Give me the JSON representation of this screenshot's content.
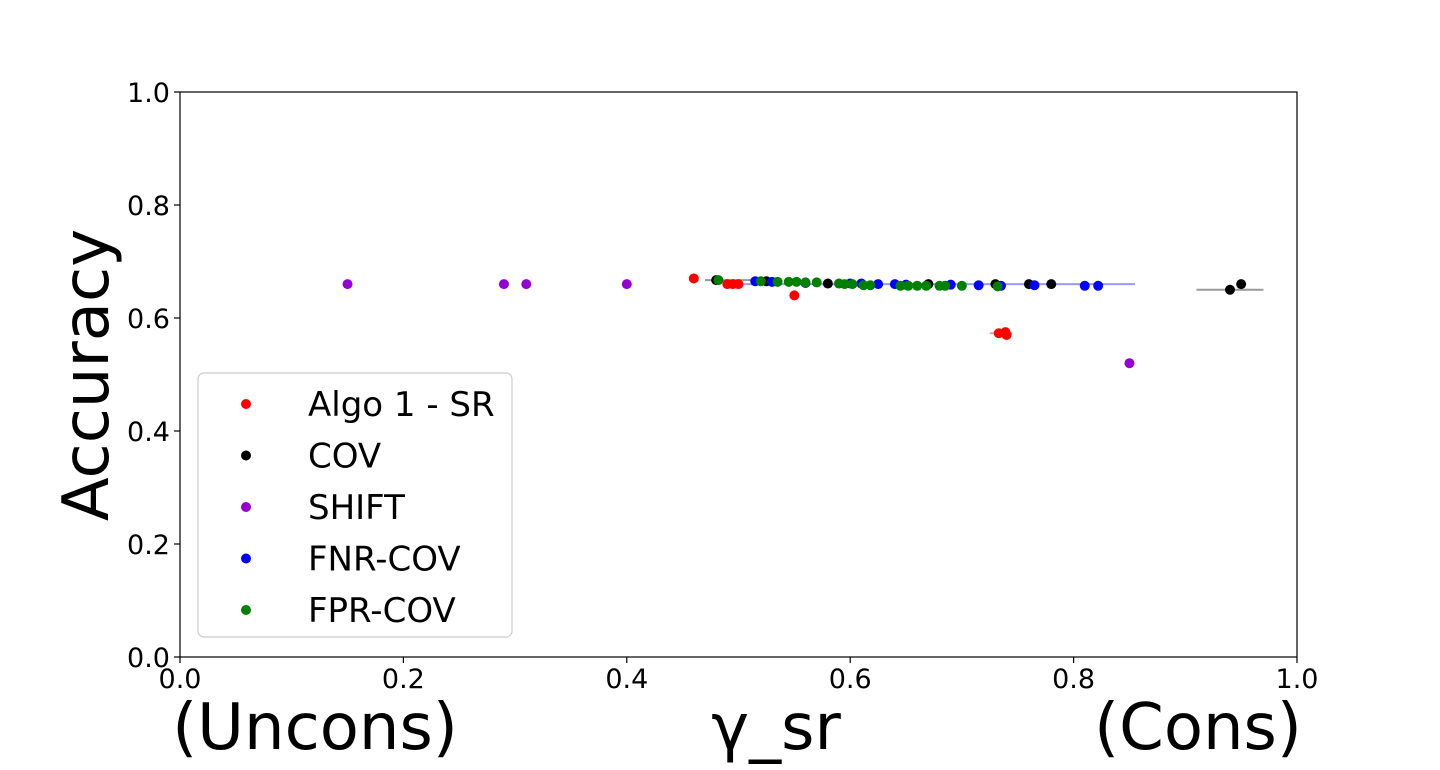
{
  "chart_data": {
    "type": "scatter",
    "title": "",
    "xlabel": {
      "left": "(Uncons)",
      "center": "γ_sr",
      "right": "(Cons)"
    },
    "ylabel": "Accuracy",
    "xlim": [
      0.0,
      1.0
    ],
    "ylim": [
      0.0,
      1.0
    ],
    "x_ticks": [
      "0.0",
      "0.2",
      "0.4",
      "0.6",
      "0.8",
      "1.0"
    ],
    "y_ticks": [
      "0.0",
      "0.2",
      "0.4",
      "0.6",
      "0.8",
      "1.0"
    ],
    "grid": false,
    "legend_position": "lower-left",
    "series": [
      {
        "name": "Algo 1 - SR",
        "color": "#ff0000",
        "points": [
          {
            "x": 0.46,
            "y": 0.67
          },
          {
            "x": 0.49,
            "y": 0.66
          },
          {
            "x": 0.495,
            "y": 0.66
          },
          {
            "x": 0.5,
            "y": 0.66
          },
          {
            "x": 0.55,
            "y": 0.64
          },
          {
            "x": 0.733,
            "y": 0.573
          },
          {
            "x": 0.739,
            "y": 0.575
          },
          {
            "x": 0.74,
            "y": 0.57
          }
        ],
        "errorbars": [
          {
            "x_lo": 0.725,
            "x_hi": 0.745,
            "y": 0.573
          }
        ]
      },
      {
        "name": "COV",
        "color": "#000000",
        "points": [
          {
            "x": 0.48,
            "y": 0.667
          },
          {
            "x": 0.525,
            "y": 0.665
          },
          {
            "x": 0.58,
            "y": 0.661
          },
          {
            "x": 0.67,
            "y": 0.66
          },
          {
            "x": 0.73,
            "y": 0.66
          },
          {
            "x": 0.76,
            "y": 0.66
          },
          {
            "x": 0.78,
            "y": 0.66
          },
          {
            "x": 0.94,
            "y": 0.65
          },
          {
            "x": 0.95,
            "y": 0.66
          }
        ],
        "errorbars": [
          {
            "x_lo": 0.91,
            "x_hi": 0.97,
            "y": 0.65
          },
          {
            "x_lo": 0.47,
            "x_hi": 0.53,
            "y": 0.667
          }
        ]
      },
      {
        "name": "SHIFT",
        "color": "#9400d3",
        "points": [
          {
            "x": 0.15,
            "y": 0.66
          },
          {
            "x": 0.29,
            "y": 0.66
          },
          {
            "x": 0.31,
            "y": 0.66
          },
          {
            "x": 0.4,
            "y": 0.66
          },
          {
            "x": 0.85,
            "y": 0.52
          }
        ]
      },
      {
        "name": "FNR-COV",
        "color": "#0000ff",
        "points": [
          {
            "x": 0.515,
            "y": 0.665
          },
          {
            "x": 0.53,
            "y": 0.664
          },
          {
            "x": 0.56,
            "y": 0.662
          },
          {
            "x": 0.6,
            "y": 0.661
          },
          {
            "x": 0.61,
            "y": 0.661
          },
          {
            "x": 0.625,
            "y": 0.66
          },
          {
            "x": 0.64,
            "y": 0.66
          },
          {
            "x": 0.65,
            "y": 0.659
          },
          {
            "x": 0.69,
            "y": 0.659
          },
          {
            "x": 0.715,
            "y": 0.658
          },
          {
            "x": 0.735,
            "y": 0.657
          },
          {
            "x": 0.765,
            "y": 0.658
          },
          {
            "x": 0.81,
            "y": 0.657
          },
          {
            "x": 0.822,
            "y": 0.657
          }
        ],
        "errorbars": [
          {
            "x_lo": 0.5,
            "x_hi": 0.855,
            "y": 0.66
          }
        ]
      },
      {
        "name": "FPR-COV",
        "color": "#008000",
        "points": [
          {
            "x": 0.482,
            "y": 0.667
          },
          {
            "x": 0.52,
            "y": 0.665
          },
          {
            "x": 0.535,
            "y": 0.664
          },
          {
            "x": 0.545,
            "y": 0.664
          },
          {
            "x": 0.552,
            "y": 0.664
          },
          {
            "x": 0.56,
            "y": 0.663
          },
          {
            "x": 0.57,
            "y": 0.663
          },
          {
            "x": 0.59,
            "y": 0.661
          },
          {
            "x": 0.595,
            "y": 0.66
          },
          {
            "x": 0.602,
            "y": 0.66
          },
          {
            "x": 0.612,
            "y": 0.658
          },
          {
            "x": 0.618,
            "y": 0.658
          },
          {
            "x": 0.645,
            "y": 0.657
          },
          {
            "x": 0.652,
            "y": 0.657
          },
          {
            "x": 0.66,
            "y": 0.657
          },
          {
            "x": 0.668,
            "y": 0.657
          },
          {
            "x": 0.68,
            "y": 0.657
          },
          {
            "x": 0.685,
            "y": 0.657
          },
          {
            "x": 0.7,
            "y": 0.657
          },
          {
            "x": 0.732,
            "y": 0.656
          }
        ]
      }
    ]
  }
}
